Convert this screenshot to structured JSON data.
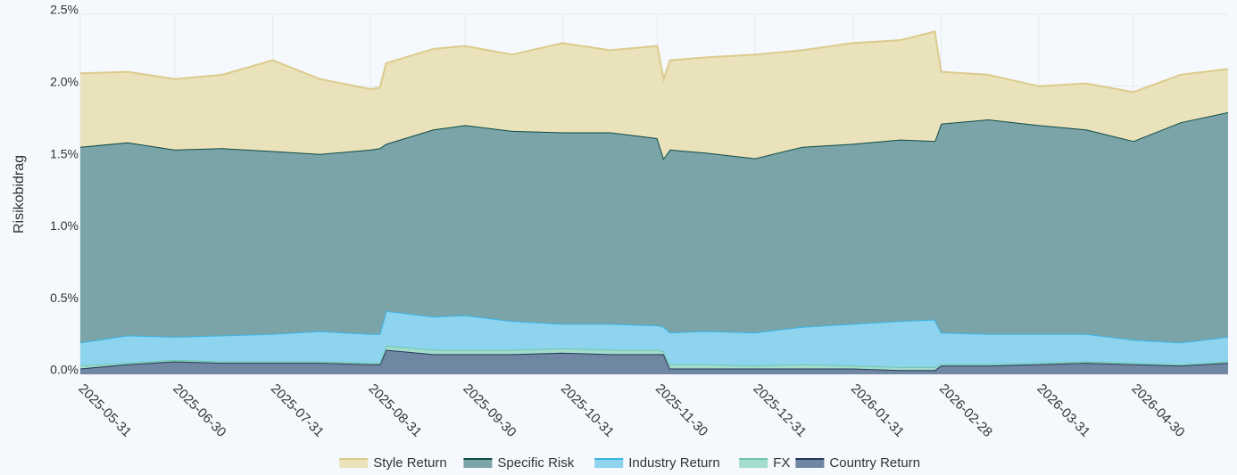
{
  "chart_data": {
    "type": "stacked_area",
    "y_label": "Risikobidrag",
    "x": [
      "2025-05-31",
      "2025-06-15",
      "2025-06-30",
      "2025-07-15",
      "2025-07-31",
      "2025-08-15",
      "2025-08-31",
      "2025-09-03",
      "2025-09-05",
      "2025-09-20",
      "2025-09-30",
      "2025-10-15",
      "2025-10-31",
      "2025-11-15",
      "2025-11-30",
      "2025-12-02",
      "2025-12-04",
      "2025-12-15",
      "2025-12-31",
      "2026-01-15",
      "2026-01-31",
      "2026-02-15",
      "2026-02-26",
      "2026-02-28",
      "2026-03-15",
      "2026-03-31",
      "2026-04-15",
      "2026-04-30",
      "2026-05-15",
      "2026-05-30"
    ],
    "xlim": [
      "2025-05-31",
      "2026-05-30"
    ],
    "xticks": [
      "2025-05-31",
      "2025-06-30",
      "2025-07-31",
      "2025-08-31",
      "2025-09-30",
      "2025-10-31",
      "2025-11-30",
      "2025-12-31",
      "2026-01-31",
      "2026-02-28",
      "2026-03-31",
      "2026-04-30"
    ],
    "ylim": [
      0,
      2.5
    ],
    "yticks": [
      {
        "value": 0,
        "label": "0.0%"
      },
      {
        "value": 0.5,
        "label": "0.5%"
      },
      {
        "value": 1,
        "label": "1.0%"
      },
      {
        "value": 1.5,
        "label": "1.5%"
      },
      {
        "value": 2,
        "label": "2.0%"
      },
      {
        "value": 2.5,
        "label": "2.5%"
      }
    ],
    "grid": true,
    "legend": "bottom",
    "series": [
      {
        "name": "Country Return",
        "color": "#6f87a3",
        "line_color": "#23395b",
        "values": [
          0.04,
          0.07,
          0.09,
          0.08,
          0.08,
          0.08,
          0.07,
          0.07,
          0.17,
          0.14,
          0.14,
          0.14,
          0.15,
          0.14,
          0.14,
          0.14,
          0.04,
          0.04,
          0.04,
          0.04,
          0.04,
          0.03,
          0.03,
          0.06,
          0.06,
          0.07,
          0.08,
          0.07,
          0.06,
          0.08
        ]
      },
      {
        "name": "FX",
        "color": "#a3dccb",
        "line_color": "#6cc6ad",
        "values": [
          0.02,
          0.01,
          0.01,
          0.01,
          0.01,
          0.01,
          0.01,
          0.01,
          0.03,
          0.03,
          0.03,
          0.03,
          0.03,
          0.03,
          0.03,
          0.02,
          0.03,
          0.03,
          0.02,
          0.03,
          0.02,
          0.02,
          0.02,
          0.01,
          0.01,
          0.01,
          0.01,
          0.01,
          0.01,
          0.01
        ]
      },
      {
        "name": "Industry Return",
        "color": "#8fd4ef",
        "line_color": "#3ab5e6",
        "values": [
          0.16,
          0.19,
          0.16,
          0.18,
          0.19,
          0.21,
          0.2,
          0.2,
          0.24,
          0.23,
          0.24,
          0.2,
          0.17,
          0.18,
          0.17,
          0.17,
          0.22,
          0.23,
          0.23,
          0.26,
          0.29,
          0.32,
          0.33,
          0.22,
          0.21,
          0.2,
          0.19,
          0.16,
          0.15,
          0.17
        ]
      },
      {
        "name": "Specific Risk",
        "color": "#7ba4a8",
        "line_color": "#0f4a45",
        "values": [
          1.36,
          1.34,
          1.3,
          1.3,
          1.27,
          1.23,
          1.28,
          1.29,
          1.16,
          1.3,
          1.32,
          1.32,
          1.33,
          1.33,
          1.3,
          1.17,
          1.27,
          1.24,
          1.21,
          1.25,
          1.25,
          1.26,
          1.24,
          1.45,
          1.49,
          1.45,
          1.42,
          1.38,
          1.53,
          1.56
        ]
      },
      {
        "name": "Style Return",
        "color": "#e9e2bb",
        "line_color": "#dccb8c",
        "values": [
          0.51,
          0.49,
          0.49,
          0.51,
          0.63,
          0.52,
          0.42,
          0.42,
          0.56,
          0.56,
          0.55,
          0.53,
          0.62,
          0.57,
          0.64,
          0.55,
          0.62,
          0.66,
          0.72,
          0.67,
          0.7,
          0.69,
          0.76,
          0.36,
          0.31,
          0.27,
          0.32,
          0.34,
          0.33,
          0.3
        ]
      }
    ]
  }
}
